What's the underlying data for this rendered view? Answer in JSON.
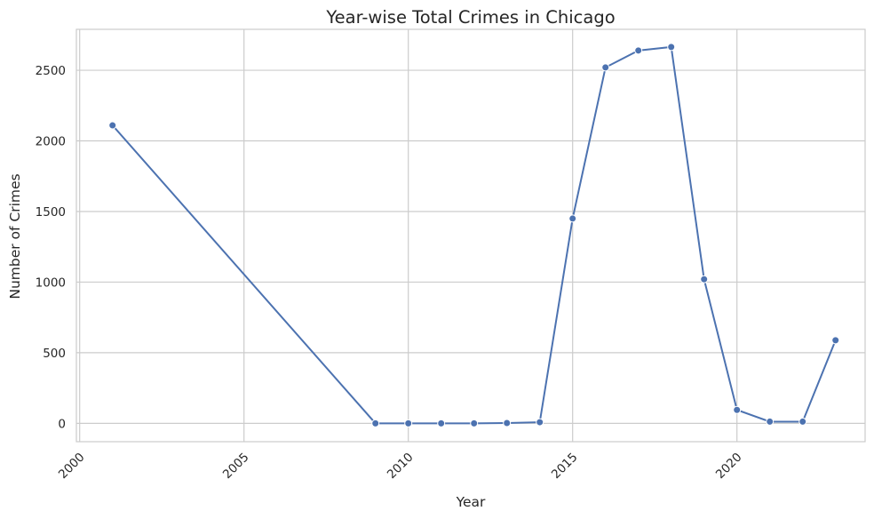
{
  "chart_data": {
    "type": "line",
    "title": "Year-wise Total Crimes in Chicago",
    "xlabel": "Year",
    "ylabel": "Number of Crimes",
    "xlim": [
      1999.9,
      2023.9
    ],
    "ylim": [
      -130,
      2790
    ],
    "xticks": [
      2000,
      2005,
      2010,
      2015,
      2020
    ],
    "yticks": [
      0,
      500,
      1000,
      1500,
      2000,
      2500
    ],
    "grid": true,
    "legend": "none",
    "colors": {
      "line": "#4c72b0",
      "grid": "#cccccc",
      "spine": "#cccccc"
    },
    "series": [
      {
        "x": [
          2001,
          2009,
          2010,
          2011,
          2012,
          2013,
          2014,
          2015,
          2016,
          2017,
          2018,
          2019,
          2020,
          2021,
          2022,
          2023
        ],
        "y": [
          2110,
          0,
          0,
          0,
          0,
          2,
          8,
          1450,
          2520,
          2640,
          2665,
          1020,
          95,
          12,
          12,
          588
        ]
      }
    ]
  }
}
